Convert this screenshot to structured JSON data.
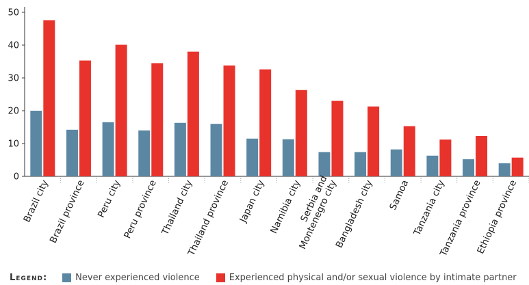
{
  "chart_data": {
    "type": "bar",
    "title": "",
    "xlabel": "",
    "ylabel": "",
    "ylim": [
      0,
      50
    ],
    "yticks": [
      0,
      10,
      20,
      30,
      40,
      50
    ],
    "grid": false,
    "legend_position": "bottom-left",
    "categories": [
      "Brazil city",
      "Brazil province",
      "Peru city",
      "Peru province",
      "Thailand city",
      "Thailand province",
      "Japan city",
      "Namibia city",
      "Serbia and Montenegro city",
      "Bangladesh city",
      "Samoa",
      "Tanzania city",
      "Tanzania province",
      "Ethiopia province"
    ],
    "category_lines": [
      [
        "Brazil city"
      ],
      [
        "Brazil province"
      ],
      [
        "Peru city"
      ],
      [
        "Peru province"
      ],
      [
        "Thailand city"
      ],
      [
        "Thailand province"
      ],
      [
        "Japan city"
      ],
      [
        "Namibia city"
      ],
      [
        "Serbia and",
        "Montenegro city"
      ],
      [
        "Bangladesh city"
      ],
      [
        "Samoa"
      ],
      [
        "Tanzania city"
      ],
      [
        "Tanzania province"
      ],
      [
        "Ethiopia province"
      ]
    ],
    "series": [
      {
        "name": "Never experienced violence",
        "color": "#5b87a3",
        "values": [
          20.0,
          14.2,
          16.5,
          14.0,
          16.3,
          16.0,
          11.5,
          11.3,
          7.4,
          7.4,
          8.2,
          6.3,
          5.2,
          4.0
        ]
      },
      {
        "name": "Experienced physical and/or sexual violence by intimate partner",
        "color": "#e8332c",
        "values": [
          47.6,
          35.3,
          40.1,
          34.5,
          38.0,
          33.8,
          32.6,
          26.3,
          23.0,
          21.3,
          15.3,
          11.2,
          12.3,
          5.7
        ]
      }
    ]
  },
  "legend": {
    "title": "Legend:",
    "items": [
      {
        "label": "Never experienced violence",
        "color": "#5b87a3"
      },
      {
        "label": "Experienced physical and/or sexual violence by intimate partner",
        "color": "#e8332c"
      }
    ]
  }
}
